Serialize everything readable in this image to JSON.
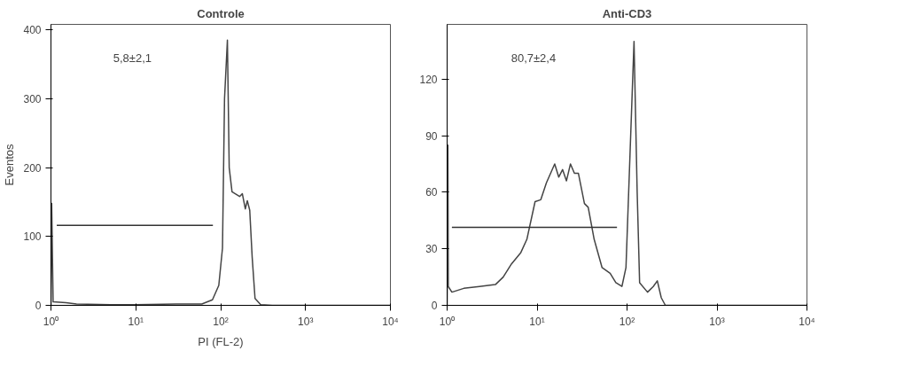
{
  "chart_data": [
    {
      "type": "line",
      "title": "Controle",
      "xlabel": "PI (FL-2)",
      "ylabel": "Eventos",
      "log": "x",
      "xlim": [
        1,
        10000
      ],
      "ylim": [
        0,
        408
      ],
      "xticks": [
        {
          "value": 1,
          "label": "10⁰"
        },
        {
          "value": 10,
          "label": "10¹"
        },
        {
          "value": 100,
          "label": "10²"
        },
        {
          "value": 1000,
          "label": "10³"
        },
        {
          "value": 10000,
          "label": "10⁴"
        }
      ],
      "yticks": [
        0,
        100,
        200,
        300,
        400
      ],
      "grid": false,
      "annotations": [
        "5,8±2,1"
      ],
      "series": [
        {
          "color": "#444444",
          "x": [
            1,
            1.02,
            1.06,
            1.5,
            2,
            5,
            10,
            30,
            60,
            80,
            95,
            105,
            111,
            120,
            126,
            136,
            167,
            180,
            195,
            206,
            220,
            235,
            254,
            296,
            405,
            10000
          ],
          "values": [
            0,
            148,
            5,
            4,
            2,
            1,
            1,
            2,
            2,
            8,
            29,
            83,
            300,
            385,
            200,
            165,
            158,
            162,
            140,
            152,
            138,
            70,
            10,
            1,
            0,
            0
          ]
        },
        {
          "color": "#333333",
          "x": [
            1.17,
            81
          ],
          "values": [
            116,
            116
          ]
        }
      ]
    },
    {
      "type": "line",
      "title": "Anti-CD3",
      "log": "x",
      "xlim": [
        1,
        10000
      ],
      "ylim": [
        0,
        149
      ],
      "xticks": [
        {
          "value": 1,
          "label": "10⁰"
        },
        {
          "value": 10,
          "label": "10¹"
        },
        {
          "value": 100,
          "label": "10²"
        },
        {
          "value": 1000,
          "label": "10³"
        },
        {
          "value": 10000,
          "label": "10⁴"
        }
      ],
      "yticks": [
        0,
        30,
        60,
        90,
        120
      ],
      "grid": false,
      "annotations": [
        "80,7±2,4"
      ],
      "series": [
        {
          "color": "#444444",
          "x": [
            1,
            1.02,
            1.03,
            1.13,
            1.53,
            2.29,
            3.44,
            4.2,
            5.2,
            6.6,
            7.7,
            9.5,
            11.0,
            12.7,
            15.7,
            17.4,
            19.2,
            21.2,
            23.5,
            26.0,
            28.8,
            33.6,
            37.0,
            43.1,
            52.8,
            64.9,
            75.1,
            87.7,
            97.3,
            107.9,
            119.6,
            129.6,
            138.0,
            168.9,
            195.8,
            217.1,
            240.3,
            266.5,
            10000
          ],
          "values": [
            0,
            85,
            10,
            7,
            9,
            10,
            11,
            15,
            22,
            28,
            35,
            55,
            56,
            65,
            75,
            68,
            72,
            66,
            75,
            70,
            70,
            54,
            52,
            35,
            20,
            17,
            12,
            10,
            20,
            80,
            140,
            60,
            12,
            7,
            10,
            13,
            4,
            0,
            0
          ]
        },
        {
          "color": "#333333",
          "x": [
            1.13,
            77.3
          ],
          "values": [
            41.4,
            41.4
          ]
        }
      ]
    }
  ]
}
